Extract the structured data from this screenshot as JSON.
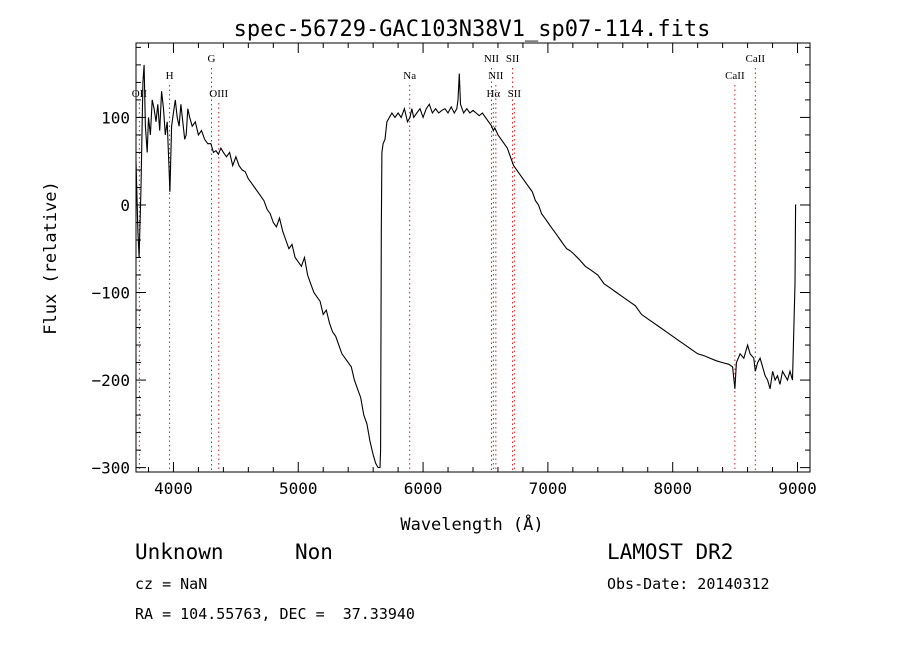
{
  "chart_data": {
    "type": "line",
    "title": "spec-56729-GAC103N38V1_sp07-114.fits",
    "xlabel": "Wavelength (Å)",
    "ylabel": "Flux (relative)",
    "xlim": [
      3700,
      9100
    ],
    "ylim": [
      -305,
      185
    ],
    "x_ticks": [
      4000,
      5000,
      6000,
      7000,
      8000,
      9000
    ],
    "y_ticks": [
      100,
      0,
      -100,
      -200,
      -300
    ],
    "grid": false,
    "line_color": "#000000",
    "marker_color": "#cc2222",
    "spectrum": [
      [
        3700,
        50
      ],
      [
        3715,
        -30
      ],
      [
        3725,
        -60
      ],
      [
        3740,
        20
      ],
      [
        3755,
        140
      ],
      [
        3765,
        160
      ],
      [
        3775,
        90
      ],
      [
        3790,
        60
      ],
      [
        3800,
        100
      ],
      [
        3815,
        80
      ],
      [
        3830,
        120
      ],
      [
        3845,
        110
      ],
      [
        3860,
        95
      ],
      [
        3875,
        115
      ],
      [
        3890,
        85
      ],
      [
        3905,
        130
      ],
      [
        3920,
        110
      ],
      [
        3935,
        80
      ],
      [
        3950,
        95
      ],
      [
        3965,
        40
      ],
      [
        3972,
        15
      ],
      [
        3985,
        90
      ],
      [
        4000,
        105
      ],
      [
        4015,
        120
      ],
      [
        4030,
        100
      ],
      [
        4045,
        90
      ],
      [
        4060,
        115
      ],
      [
        4075,
        95
      ],
      [
        4090,
        75
      ],
      [
        4102,
        80
      ],
      [
        4115,
        110
      ],
      [
        4130,
        100
      ],
      [
        4150,
        90
      ],
      [
        4175,
        95
      ],
      [
        4200,
        80
      ],
      [
        4225,
        85
      ],
      [
        4250,
        75
      ],
      [
        4275,
        70
      ],
      [
        4300,
        70
      ],
      [
        4320,
        60
      ],
      [
        4340,
        62
      ],
      [
        4360,
        58
      ],
      [
        4380,
        65
      ],
      [
        4400,
        60
      ],
      [
        4425,
        55
      ],
      [
        4450,
        60
      ],
      [
        4475,
        45
      ],
      [
        4500,
        55
      ],
      [
        4525,
        45
      ],
      [
        4550,
        40
      ],
      [
        4575,
        38
      ],
      [
        4600,
        30
      ],
      [
        4625,
        25
      ],
      [
        4650,
        20
      ],
      [
        4675,
        15
      ],
      [
        4700,
        10
      ],
      [
        4725,
        5
      ],
      [
        4750,
        -5
      ],
      [
        4775,
        -10
      ],
      [
        4800,
        -20
      ],
      [
        4825,
        -25
      ],
      [
        4850,
        -15
      ],
      [
        4875,
        -30
      ],
      [
        4900,
        -40
      ],
      [
        4925,
        -50
      ],
      [
        4950,
        -45
      ],
      [
        4975,
        -60
      ],
      [
        5000,
        -65
      ],
      [
        5025,
        -70
      ],
      [
        5050,
        -60
      ],
      [
        5075,
        -80
      ],
      [
        5100,
        -90
      ],
      [
        5125,
        -100
      ],
      [
        5150,
        -105
      ],
      [
        5175,
        -110
      ],
      [
        5200,
        -125
      ],
      [
        5225,
        -120
      ],
      [
        5250,
        -135
      ],
      [
        5275,
        -145
      ],
      [
        5300,
        -150
      ],
      [
        5325,
        -160
      ],
      [
        5350,
        -170
      ],
      [
        5375,
        -175
      ],
      [
        5400,
        -180
      ],
      [
        5425,
        -185
      ],
      [
        5450,
        -200
      ],
      [
        5475,
        -210
      ],
      [
        5500,
        -220
      ],
      [
        5525,
        -240
      ],
      [
        5550,
        -250
      ],
      [
        5575,
        -270
      ],
      [
        5600,
        -285
      ],
      [
        5620,
        -295
      ],
      [
        5640,
        -300
      ],
      [
        5655,
        -300
      ],
      [
        5660,
        -280
      ],
      [
        5665,
        -30
      ],
      [
        5670,
        60
      ],
      [
        5680,
        70
      ],
      [
        5695,
        75
      ],
      [
        5710,
        95
      ],
      [
        5730,
        100
      ],
      [
        5750,
        105
      ],
      [
        5775,
        100
      ],
      [
        5800,
        105
      ],
      [
        5825,
        100
      ],
      [
        5850,
        110
      ],
      [
        5875,
        95
      ],
      [
        5895,
        100
      ],
      [
        5910,
        110
      ],
      [
        5925,
        100
      ],
      [
        5950,
        105
      ],
      [
        5975,
        110
      ],
      [
        6000,
        100
      ],
      [
        6025,
        110
      ],
      [
        6050,
        115
      ],
      [
        6075,
        105
      ],
      [
        6100,
        110
      ],
      [
        6125,
        105
      ],
      [
        6150,
        108
      ],
      [
        6175,
        110
      ],
      [
        6200,
        105
      ],
      [
        6225,
        112
      ],
      [
        6250,
        105
      ],
      [
        6270,
        110
      ],
      [
        6280,
        120
      ],
      [
        6290,
        150
      ],
      [
        6300,
        115
      ],
      [
        6325,
        105
      ],
      [
        6350,
        110
      ],
      [
        6375,
        105
      ],
      [
        6400,
        108
      ],
      [
        6425,
        105
      ],
      [
        6450,
        102
      ],
      [
        6475,
        105
      ],
      [
        6500,
        100
      ],
      [
        6525,
        95
      ],
      [
        6550,
        90
      ],
      [
        6563,
        85
      ],
      [
        6575,
        88
      ],
      [
        6600,
        80
      ],
      [
        6625,
        75
      ],
      [
        6650,
        70
      ],
      [
        6675,
        65
      ],
      [
        6700,
        55
      ],
      [
        6725,
        45
      ],
      [
        6750,
        40
      ],
      [
        6775,
        35
      ],
      [
        6800,
        30
      ],
      [
        6825,
        25
      ],
      [
        6850,
        20
      ],
      [
        6875,
        15
      ],
      [
        6900,
        5
      ],
      [
        6925,
        0
      ],
      [
        6950,
        -10
      ],
      [
        6975,
        -15
      ],
      [
        7000,
        -20
      ],
      [
        7025,
        -25
      ],
      [
        7050,
        -30
      ],
      [
        7075,
        -35
      ],
      [
        7100,
        -40
      ],
      [
        7125,
        -45
      ],
      [
        7150,
        -50
      ],
      [
        7175,
        -52
      ],
      [
        7200,
        -55
      ],
      [
        7250,
        -62
      ],
      [
        7300,
        -70
      ],
      [
        7350,
        -75
      ],
      [
        7400,
        -80
      ],
      [
        7450,
        -90
      ],
      [
        7500,
        -95
      ],
      [
        7550,
        -100
      ],
      [
        7600,
        -105
      ],
      [
        7650,
        -110
      ],
      [
        7700,
        -115
      ],
      [
        7750,
        -125
      ],
      [
        7800,
        -130
      ],
      [
        7850,
        -135
      ],
      [
        7900,
        -140
      ],
      [
        7950,
        -145
      ],
      [
        8000,
        -150
      ],
      [
        8050,
        -155
      ],
      [
        8100,
        -160
      ],
      [
        8150,
        -165
      ],
      [
        8200,
        -170
      ],
      [
        8250,
        -172
      ],
      [
        8300,
        -175
      ],
      [
        8350,
        -178
      ],
      [
        8400,
        -180
      ],
      [
        8450,
        -182
      ],
      [
        8480,
        -185
      ],
      [
        8498,
        -210
      ],
      [
        8510,
        -180
      ],
      [
        8540,
        -170
      ],
      [
        8570,
        -175
      ],
      [
        8600,
        -160
      ],
      [
        8620,
        -170
      ],
      [
        8650,
        -175
      ],
      [
        8662,
        -190
      ],
      [
        8680,
        -180
      ],
      [
        8700,
        -175
      ],
      [
        8720,
        -185
      ],
      [
        8740,
        -195
      ],
      [
        8760,
        -200
      ],
      [
        8780,
        -210
      ],
      [
        8800,
        -190
      ],
      [
        8820,
        -200
      ],
      [
        8840,
        -195
      ],
      [
        8860,
        -205
      ],
      [
        8880,
        -190
      ],
      [
        8900,
        -195
      ],
      [
        8920,
        -200
      ],
      [
        8940,
        -190
      ],
      [
        8960,
        -200
      ],
      [
        8980,
        -90
      ],
      [
        8985,
        0
      ],
      [
        8990,
        0
      ]
    ],
    "lines": [
      {
        "label": "OII",
        "x": 3727,
        "row": 3
      },
      {
        "label": "H",
        "x": 3969,
        "row": 2
      },
      {
        "label": "G",
        "x": 4305,
        "row": 1
      },
      {
        "label": "OIII",
        "x": 4363,
        "row": 3
      },
      {
        "label": "Na",
        "x": 5893,
        "row": 2
      },
      {
        "label": "NII",
        "x": 6548,
        "row": 1
      },
      {
        "label": "SII",
        "x": 6717,
        "row": 1
      },
      {
        "label": "NII",
        "x": 6583,
        "row": 2
      },
      {
        "label": "Hα",
        "x": 6563,
        "row": 3
      },
      {
        "label": "SII",
        "x": 6731,
        "row": 3
      },
      {
        "label": "CaII",
        "x": 8498,
        "row": 2
      },
      {
        "label": "CaII",
        "x": 8662,
        "row": 1
      }
    ]
  },
  "info": {
    "class": "Unknown",
    "subclass": "Non",
    "survey": "LAMOST DR2",
    "cz": "cz = NaN",
    "obs_date": "Obs-Date: 20140312",
    "coords": "RA = 104.55763, DEC =  37.33940"
  }
}
